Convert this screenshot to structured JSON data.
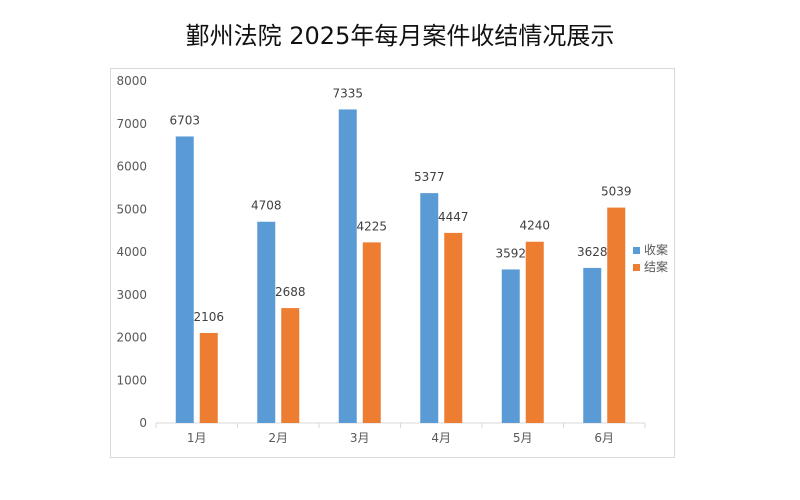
{
  "chart_data": {
    "type": "bar",
    "title": "鄞州法院 2025年每月案件收结情况展示",
    "categories": [
      "1月",
      "2月",
      "3月",
      "4月",
      "5月",
      "6月"
    ],
    "series": [
      {
        "name": "收案",
        "color": "#5b9bd5",
        "values": [
          6703,
          4708,
          7335,
          5377,
          3592,
          3628
        ]
      },
      {
        "name": "结案",
        "color": "#ed7d31",
        "values": [
          2106,
          2688,
          4225,
          4447,
          4240,
          5039
        ]
      }
    ],
    "ylim": [
      0,
      8000
    ],
    "yticks": [
      0,
      1000,
      2000,
      3000,
      4000,
      5000,
      6000,
      7000,
      8000
    ],
    "xlabel": "",
    "ylabel": "",
    "grid": false,
    "legend_position": "right"
  }
}
